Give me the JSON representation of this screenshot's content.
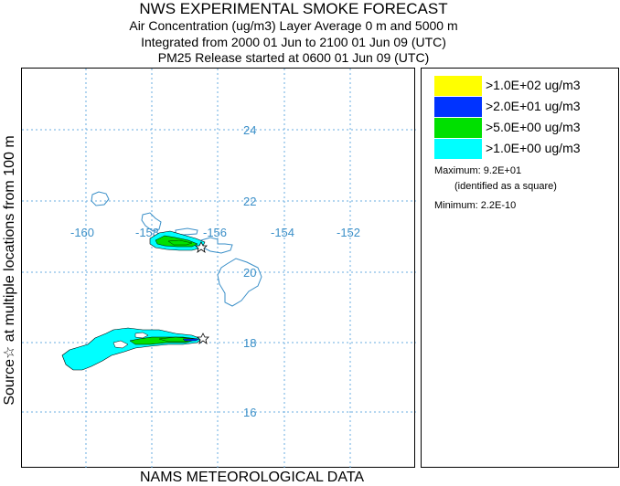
{
  "title": {
    "line1": "NWS EXPERIMENTAL SMOKE FORECAST",
    "line2": "Air Concentration (ug/m3) Layer Average    0 m and  5000 m",
    "line3": "Integrated from 2000 01 Jun to 2100 01 Jun 09 (UTC)",
    "line4": "PM25 Release started at 0600 01 Jun 09 (UTC)"
  },
  "side_label": "Source☆ at multiple locations    from  100 m",
  "bottom_label": "NAMS METEOROLOGICAL DATA",
  "map": {
    "longitude_labels": [
      "-160",
      "-158",
      "-156",
      "-154",
      "-152"
    ],
    "latitude_labels": [
      "24",
      "22",
      "20",
      "18",
      "16"
    ],
    "grid_color": "#6aaee0",
    "land_outline_color": "#3a8fc8",
    "source_marker": "star-icon"
  },
  "legend": {
    "items": [
      {
        "color": "#ffff00",
        "label": ">1.0E+02 ug/m3"
      },
      {
        "color": "#0033ff",
        "label": ">2.0E+01 ug/m3"
      },
      {
        "color": "#00e000",
        "label": ">5.0E+00 ug/m3"
      },
      {
        "color": "#00ffff",
        "label": ">1.0E+00 ug/m3"
      }
    ],
    "maximum": "Maximum: 9.2E+01",
    "maximum_note": "(identified as a square)",
    "minimum": "Minimum: 2.2E-10"
  }
}
